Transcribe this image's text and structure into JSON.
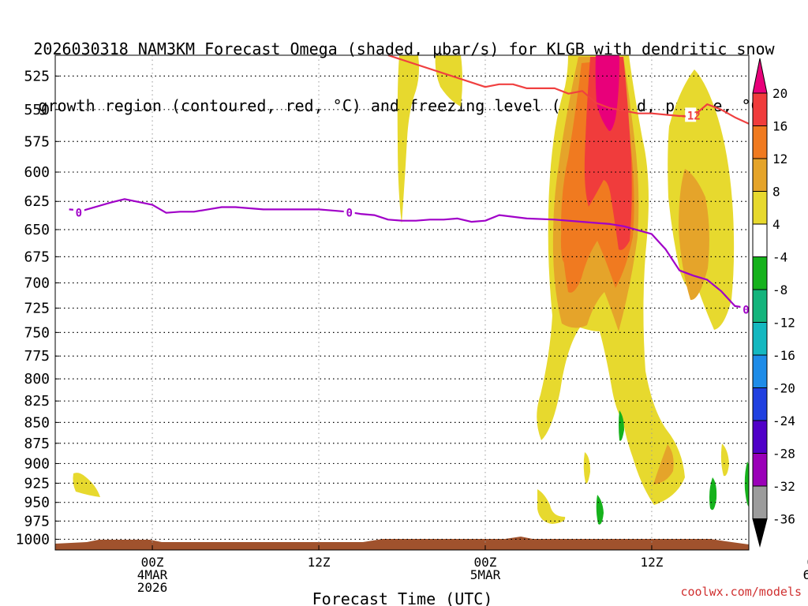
{
  "title_line1": "2026030318 NAM3KM Forecast Omega (shaded, μbar/s) for KLGB with dendritic snow",
  "title_line2": "growth region (contoured, red, °C) and freezing level (contoured, purple, °C)",
  "credit": "coolwx.com/models",
  "chart_data": {
    "type": "time-height cross section (filled contour)",
    "title": "2026030318 NAM3KM Forecast Omega (shaded, μbar/s) for KLGB with dendritic snow growth region (contoured, red, °C) and freezing level (contoured, purple, °C)",
    "xlabel": "Forecast Time (UTC)",
    "ylabel": "Pressure (hPa)",
    "x_range_hours": [
      -7,
      43
    ],
    "y_range_hpa": [
      510,
      1015
    ],
    "y_scale": "log-pressure, inverted",
    "x_ticks": [
      {
        "hour": 0,
        "lines": [
          "00Z",
          "4MAR",
          "2026"
        ]
      },
      {
        "hour": 12,
        "lines": [
          "12Z"
        ]
      },
      {
        "hour": 24,
        "lines": [
          "00Z",
          "5MAR"
        ]
      },
      {
        "hour": 36,
        "lines": [
          "12Z"
        ]
      },
      {
        "hour": 48,
        "lines": [
          "00Z",
          "6MAR"
        ]
      }
    ],
    "y_ticks": [
      525,
      550,
      575,
      600,
      625,
      650,
      675,
      700,
      725,
      750,
      775,
      800,
      825,
      850,
      875,
      900,
      925,
      950,
      975,
      1000
    ],
    "grid": true,
    "colorbar": {
      "levels": [
        20,
        16,
        12,
        8,
        4,
        -4,
        -8,
        -12,
        -16,
        -20,
        -24,
        -28,
        -32,
        -36
      ],
      "colors": [
        "#e8007a",
        "#f03c3c",
        "#f07a20",
        "#e5a42a",
        "#e7d92e",
        "#ffffff",
        "#16b21c",
        "#14b47c",
        "#14b8c0",
        "#1e8ce8",
        "#2040e0",
        "#5000c8",
        "#9a00b8",
        "#9c9c9c"
      ],
      "units": "μbar/s",
      "extends": "both"
    },
    "contours": {
      "dendritic_growth_region": {
        "label": "-12",
        "color": "#f04040",
        "points": [
          [
            17,
            510
          ],
          [
            24,
            533
          ],
          [
            25,
            531
          ],
          [
            26,
            531
          ],
          [
            27,
            534
          ],
          [
            29,
            534
          ],
          [
            30,
            538
          ],
          [
            31,
            536
          ],
          [
            32,
            545
          ],
          [
            33,
            549
          ],
          [
            35,
            553
          ],
          [
            36,
            553
          ],
          [
            38,
            555
          ],
          [
            39,
            555
          ],
          [
            40,
            546
          ],
          [
            41,
            550
          ],
          [
            42,
            556
          ],
          [
            44,
            566
          ],
          [
            46,
            575
          ],
          [
            48,
            578
          ],
          [
            50,
            580
          ],
          [
            51,
            579
          ],
          [
            53,
            579
          ]
        ]
      },
      "freezing_level": {
        "label": "0",
        "color": "#a000c8",
        "points": [
          [
            -6,
            632
          ],
          [
            -5,
            633
          ],
          [
            -3,
            626
          ],
          [
            -2,
            623
          ],
          [
            0,
            628
          ],
          [
            1,
            635
          ],
          [
            2,
            634
          ],
          [
            3,
            634
          ],
          [
            4,
            632
          ],
          [
            5,
            630
          ],
          [
            6,
            630
          ],
          [
            8,
            632
          ],
          [
            10,
            632
          ],
          [
            12,
            632
          ],
          [
            13,
            633
          ],
          [
            14,
            634
          ],
          [
            15,
            636
          ],
          [
            16,
            637
          ],
          [
            17,
            641
          ],
          [
            18,
            642
          ],
          [
            19,
            642
          ],
          [
            20,
            641
          ],
          [
            21,
            641
          ],
          [
            22,
            640
          ],
          [
            23,
            643
          ],
          [
            24,
            642
          ],
          [
            25,
            637
          ],
          [
            27,
            640
          ],
          [
            29,
            641
          ],
          [
            31,
            643
          ],
          [
            33,
            645
          ],
          [
            34,
            647
          ],
          [
            36,
            654
          ],
          [
            37,
            668
          ],
          [
            38,
            688
          ],
          [
            39,
            693
          ],
          [
            40,
            697
          ],
          [
            41,
            708
          ],
          [
            42,
            723
          ],
          [
            43,
            725
          ],
          [
            44,
            726
          ],
          [
            45,
            726
          ],
          [
            46,
            724
          ],
          [
            47,
            712
          ],
          [
            48,
            699
          ],
          [
            49,
            696
          ],
          [
            50,
            695
          ],
          [
            51,
            696
          ],
          [
            53,
            697
          ]
        ]
      }
    },
    "omega_regions_ascending": [
      {
        "name": "early morning 4MAR near 940 hPa",
        "max_ubar_s": 4
      },
      {
        "name": "5MAR 00Z column 510-640 hPa",
        "max_ubar_s": 4
      },
      {
        "name": "5MAR 15Z-21Z main column",
        "max_ubar_s": 20
      },
      {
        "name": "6MAR 00Z-03Z column 540-740 hPa",
        "max_ubar_s": 8
      },
      {
        "name": "6MAR 00Z near 925 hPa",
        "max_ubar_s": 8
      }
    ],
    "omega_regions_descending": [
      {
        "name": "5MAR ~19Z near 870 hPa",
        "min_ubar_s": -4
      },
      {
        "name": "5MAR ~17Z near 975 hPa",
        "min_ubar_s": -4
      },
      {
        "name": "6MAR ~03Z near 950 hPa",
        "min_ubar_s": -4
      },
      {
        "name": "6MAR ~06Z near 940 hPa",
        "min_ubar_s": -4
      }
    ]
  }
}
